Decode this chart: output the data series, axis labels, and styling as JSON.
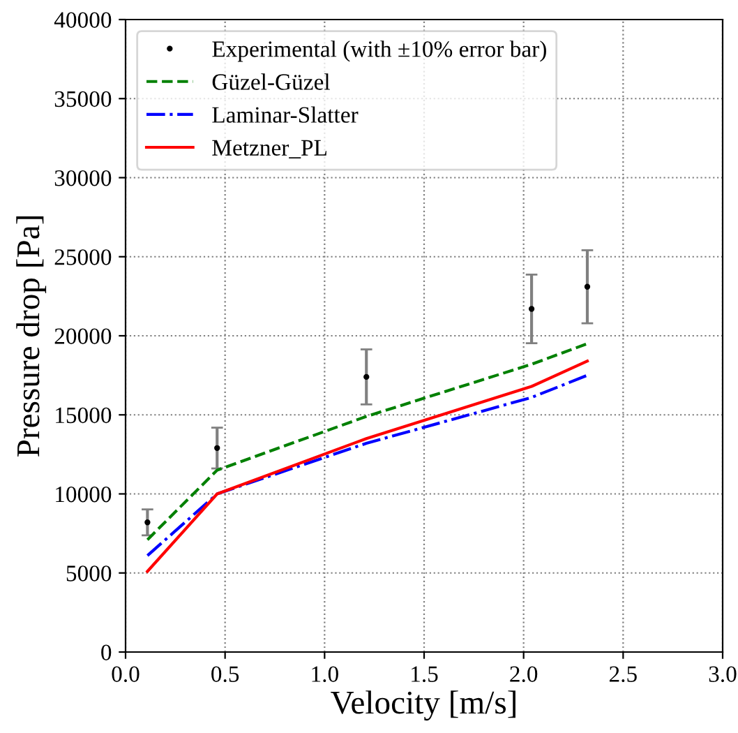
{
  "chart_data": {
    "type": "line",
    "xlabel": "Velocity [m/s]",
    "ylabel": "Pressure drop [Pa]",
    "x": [
      0.11,
      0.46,
      1.21,
      2.04,
      2.32
    ],
    "series": [
      {
        "name": "Experimental (with ±10% error bar)",
        "type": "scatter",
        "color": "#000000",
        "values": [
          8200,
          12900,
          17400,
          21700,
          23100
        ],
        "errors": [
          820,
          1290,
          1740,
          2170,
          2310
        ],
        "marker": "circle"
      },
      {
        "name": "Güzel-Güzel",
        "color": "#008000",
        "values": [
          7100,
          11500,
          14900,
          18200,
          19500
        ],
        "line_style": "dashed"
      },
      {
        "name": "Laminar-Slatter",
        "color": "#0000ff",
        "values": [
          6100,
          10000,
          13200,
          16100,
          17500
        ],
        "line_style": "dashdot"
      },
      {
        "name": "Metzner_PL",
        "color": "#ff0000",
        "values": [
          5100,
          10000,
          13500,
          16800,
          18400
        ],
        "line_style": "solid"
      }
    ],
    "xlim": [
      0.0,
      3.0
    ],
    "xticks": [
      {
        "value": 0,
        "label": "0.0"
      },
      {
        "value": 0.5,
        "label": "0.5"
      },
      {
        "value": 1,
        "label": "1.0"
      },
      {
        "value": 1.5,
        "label": "1.5"
      },
      {
        "value": 2,
        "label": "2.0"
      },
      {
        "value": 2.5,
        "label": "2.5"
      },
      {
        "value": 3,
        "label": "3.0"
      }
    ],
    "ylim": [
      0,
      40000
    ],
    "yticks": [
      0,
      5000,
      10000,
      15000,
      20000,
      25000,
      30000,
      35000,
      40000
    ],
    "grid": true,
    "legend": "top left"
  }
}
